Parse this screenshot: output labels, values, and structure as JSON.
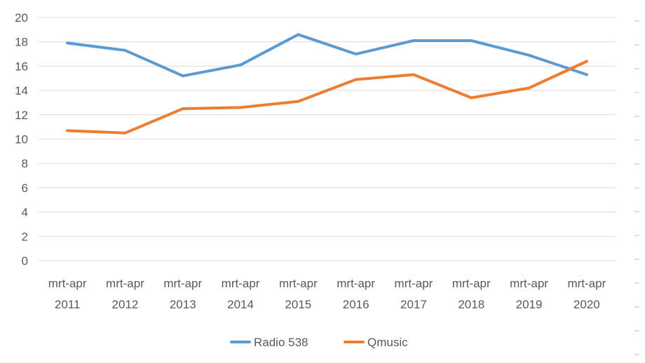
{
  "chart_data": {
    "type": "line",
    "title": "",
    "xlabel": "",
    "ylabel": "",
    "ylim": [
      0,
      20
    ],
    "y_ticks": [
      "0",
      "2",
      "4",
      "6",
      "8",
      "10",
      "12",
      "14",
      "16",
      "18",
      "20"
    ],
    "grid": true,
    "legend_position": "bottom",
    "categories": [
      [
        "mrt-apr",
        "2011"
      ],
      [
        "mrt-apr",
        "2012"
      ],
      [
        "mrt-apr",
        "2013"
      ],
      [
        "mrt-apr",
        "2014"
      ],
      [
        "mrt-apr",
        "2015"
      ],
      [
        "mrt-apr",
        "2016"
      ],
      [
        "mrt-apr",
        "2017"
      ],
      [
        "mrt-apr",
        "2018"
      ],
      [
        "mrt-apr",
        "2019"
      ],
      [
        "mrt-apr",
        "2020"
      ]
    ],
    "series": [
      {
        "name": "Radio 538",
        "color": "#5b9bd5",
        "values": [
          17.9,
          17.3,
          15.2,
          16.1,
          18.6,
          17.0,
          18.1,
          18.1,
          16.9,
          15.3
        ]
      },
      {
        "name": "Qmusic",
        "color": "#ed7d31",
        "values": [
          10.7,
          10.5,
          12.5,
          12.6,
          13.1,
          14.9,
          15.3,
          13.4,
          14.2,
          16.4
        ]
      }
    ]
  }
}
